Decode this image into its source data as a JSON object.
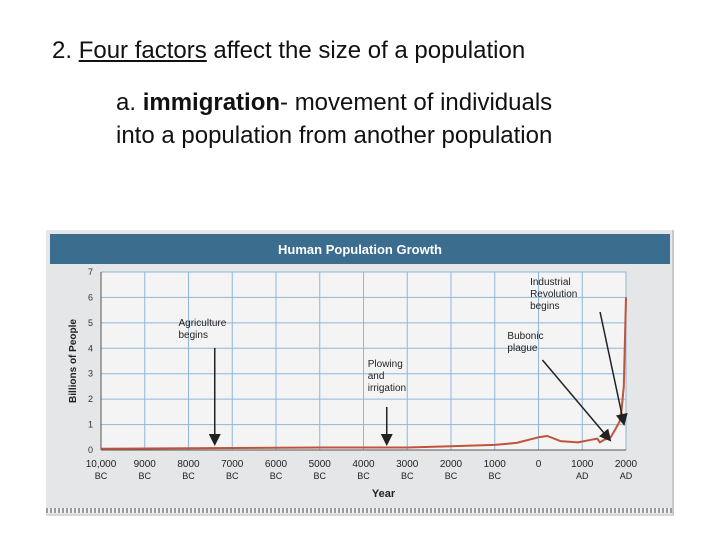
{
  "slide": {
    "heading": {
      "number": "2.",
      "underlined": "Four factors",
      "rest": "affect the size of a population"
    },
    "subpoint": {
      "letter": "a.",
      "term": "immigration",
      "definition_line1": "- movement of individuals",
      "definition_line2": "into a population from another population"
    }
  },
  "chart_data": {
    "type": "line",
    "title": "Human Population Growth",
    "xlabel": "Year",
    "ylabel": "Billions of People",
    "ylim": [
      0,
      7
    ],
    "yticks": [
      "0",
      "1",
      "2",
      "3",
      "4",
      "5",
      "6",
      "7"
    ],
    "xticks": [
      {
        "year": -10000,
        "top": "10,000",
        "bottom": "BC"
      },
      {
        "year": -9000,
        "top": "9000",
        "bottom": "BC"
      },
      {
        "year": -8000,
        "top": "8000",
        "bottom": "BC"
      },
      {
        "year": -7000,
        "top": "7000",
        "bottom": "BC"
      },
      {
        "year": -6000,
        "top": "6000",
        "bottom": "BC"
      },
      {
        "year": -5000,
        "top": "5000",
        "bottom": "BC"
      },
      {
        "year": -4000,
        "top": "4000",
        "bottom": "BC"
      },
      {
        "year": -3000,
        "top": "3000",
        "bottom": "BC"
      },
      {
        "year": -2000,
        "top": "2000",
        "bottom": "BC"
      },
      {
        "year": -1000,
        "top": "1000",
        "bottom": "BC"
      },
      {
        "year": 0,
        "top": "0",
        "bottom": ""
      },
      {
        "year": 1000,
        "top": "1000",
        "bottom": "AD"
      },
      {
        "year": 2000,
        "top": "2000",
        "bottom": "AD"
      }
    ],
    "grid": true,
    "line_color": "#c0543a",
    "series": [
      {
        "x": [
          -10000,
          -9000,
          -8000,
          -7000,
          -6000,
          -5000,
          -4000,
          -3000,
          -2000,
          -1000,
          -500,
          0,
          200,
          500,
          900,
          1200,
          1347,
          1400,
          1500,
          1650,
          1750,
          1800,
          1850,
          1900,
          1950,
          2000
        ],
        "values": [
          0.05,
          0.06,
          0.07,
          0.08,
          0.09,
          0.1,
          0.1,
          0.1,
          0.15,
          0.2,
          0.28,
          0.5,
          0.55,
          0.35,
          0.3,
          0.4,
          0.45,
          0.3,
          0.4,
          0.5,
          0.8,
          0.95,
          1.1,
          1.6,
          2.5,
          6.0
        ]
      }
    ],
    "annotations": [
      {
        "lines": [
          "Agriculture",
          "begins"
        ],
        "year": -8000
      },
      {
        "lines": [
          "Plowing",
          "and",
          "irrigation"
        ],
        "year": -3400
      },
      {
        "lines": [
          "Bubonic",
          "plague"
        ],
        "year": 1347
      },
      {
        "lines": [
          "Industrial",
          "Revolution",
          "begins"
        ],
        "year": 1750
      }
    ]
  }
}
